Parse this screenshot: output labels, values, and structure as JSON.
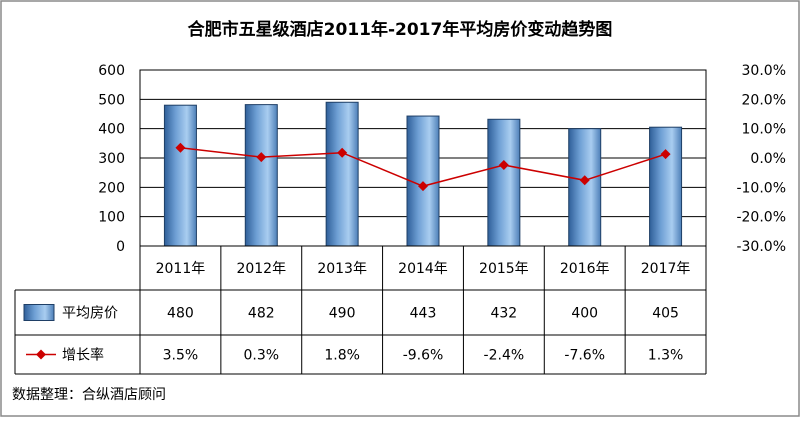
{
  "chart_data": {
    "type": "bar",
    "title": "合肥市五星级酒店2011年-2017年平均房价变动趋势图",
    "categories": [
      "2011年",
      "2012年",
      "2013年",
      "2014年",
      "2015年",
      "2016年",
      "2017年"
    ],
    "ylim_left": [
      0,
      600
    ],
    "yticks_left": [
      "0",
      "100",
      "200",
      "300",
      "400",
      "500",
      "600"
    ],
    "ylim_right": [
      -30,
      30
    ],
    "yticks_right": [
      "-30.0%",
      "-20.0%",
      "-10.0%",
      "0.0%",
      "10.0%",
      "20.0%",
      "30.0%"
    ],
    "grid": true,
    "legend_placement": "data-table",
    "series": [
      {
        "name": "平均房价",
        "type": "bar",
        "axis": "left",
        "values": [
          480,
          482,
          490,
          443,
          432,
          400,
          405
        ],
        "labels": [
          "480",
          "482",
          "490",
          "443",
          "432",
          "400",
          "405"
        ],
        "color": "#6e9fd4"
      },
      {
        "name": "增长率",
        "type": "line",
        "axis": "right",
        "values": [
          3.5,
          0.3,
          1.8,
          -9.6,
          -2.4,
          -7.6,
          1.3
        ],
        "labels": [
          "3.5%",
          "0.3%",
          "1.8%",
          "-9.6%",
          "-2.4%",
          "-7.6%",
          "1.3%"
        ],
        "color": "#cc0000"
      }
    ]
  },
  "source_note": "数据整理：合纵酒店顾问"
}
